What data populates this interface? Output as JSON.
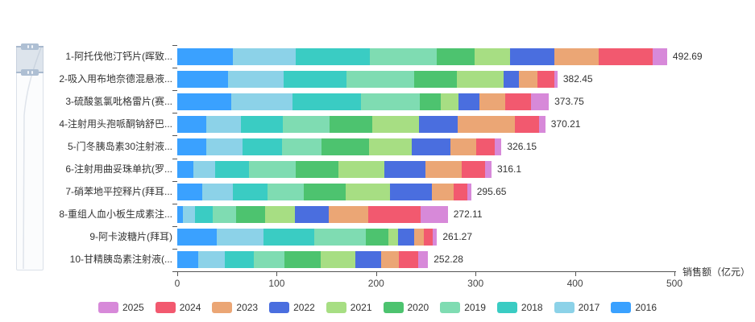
{
  "chart_data": {
    "type": "bar",
    "orientation": "horizontal",
    "stacked": true,
    "xlabel": "销售额（亿元）",
    "xlim": [
      0,
      500
    ],
    "x_ticks": [
      0,
      100,
      200,
      300,
      400,
      500
    ],
    "grid": false,
    "legend_position": "bottom",
    "categories": [
      "1-阿托伐他汀钙片(晖致...",
      "2-吸入用布地奈德混悬液...",
      "3-硫酸氢氯吡格雷片(赛...",
      "4-注射用头孢哌酮钠舒巴...",
      "5-门冬胰岛素30注射液...",
      "6-注射用曲妥珠单抗(罗...",
      "7-硝苯地平控释片(拜耳...",
      "8-重组人血小板生成素注...",
      "9-阿卡波糖片(拜耳)",
      "10-甘精胰岛素注射液(..."
    ],
    "totals": [
      492.69,
      382.45,
      373.75,
      370.21,
      326.15,
      316.1,
      295.65,
      272.11,
      261.27,
      252.28
    ],
    "total_labels": [
      "492.69",
      "382.45",
      "373.75",
      "370.21",
      "326.15",
      "316.1",
      "295.65",
      "272.11",
      "261.27",
      "252.28"
    ],
    "series": [
      {
        "name": "2016",
        "color": "#3AA1FF",
        "values": [
          56,
          51,
          54,
          29,
          29,
          16,
          25,
          6,
          40,
          21
        ]
      },
      {
        "name": "2017",
        "color": "#8CD2E8",
        "values": [
          63,
          56,
          62,
          35,
          37,
          22,
          31,
          12,
          47,
          27
        ]
      },
      {
        "name": "2018",
        "color": "#3ACCC3",
        "values": [
          75,
          63,
          69,
          42,
          39,
          34,
          35,
          18,
          51,
          29
        ]
      },
      {
        "name": "2019",
        "color": "#7FDCB2",
        "values": [
          67,
          68,
          59,
          47,
          40,
          47,
          36,
          23,
          52,
          31
        ]
      },
      {
        "name": "2020",
        "color": "#4DC36F",
        "values": [
          38,
          43,
          21,
          43,
          48,
          43,
          42,
          29,
          22,
          36
        ]
      },
      {
        "name": "2021",
        "color": "#A7DE83",
        "values": [
          36,
          47,
          18,
          47,
          43,
          46,
          45,
          30,
          10,
          35
        ]
      },
      {
        "name": "2022",
        "color": "#4A6EDF",
        "values": [
          44,
          16,
          21,
          39,
          39,
          42,
          42,
          34,
          16,
          26
        ]
      },
      {
        "name": "2023",
        "color": "#EBA675",
        "values": [
          45,
          18,
          26,
          58,
          26,
          36,
          22,
          40,
          10,
          18
        ]
      },
      {
        "name": "2024",
        "color": "#F2596F",
        "values": [
          54,
          17,
          26,
          24,
          18,
          24,
          14,
          53,
          9,
          19
        ]
      },
      {
        "name": "2025",
        "color": "#D789D9",
        "values": [
          14.69,
          3.45,
          17.75,
          6.21,
          7.15,
          6.1,
          3.65,
          27.11,
          4.27,
          10.28
        ]
      }
    ],
    "legend_items": [
      "2025",
      "2024",
      "2023",
      "2022",
      "2021",
      "2020",
      "2019",
      "2018",
      "2017",
      "2016"
    ]
  },
  "axis": {
    "title": "销售额（亿元）"
  }
}
